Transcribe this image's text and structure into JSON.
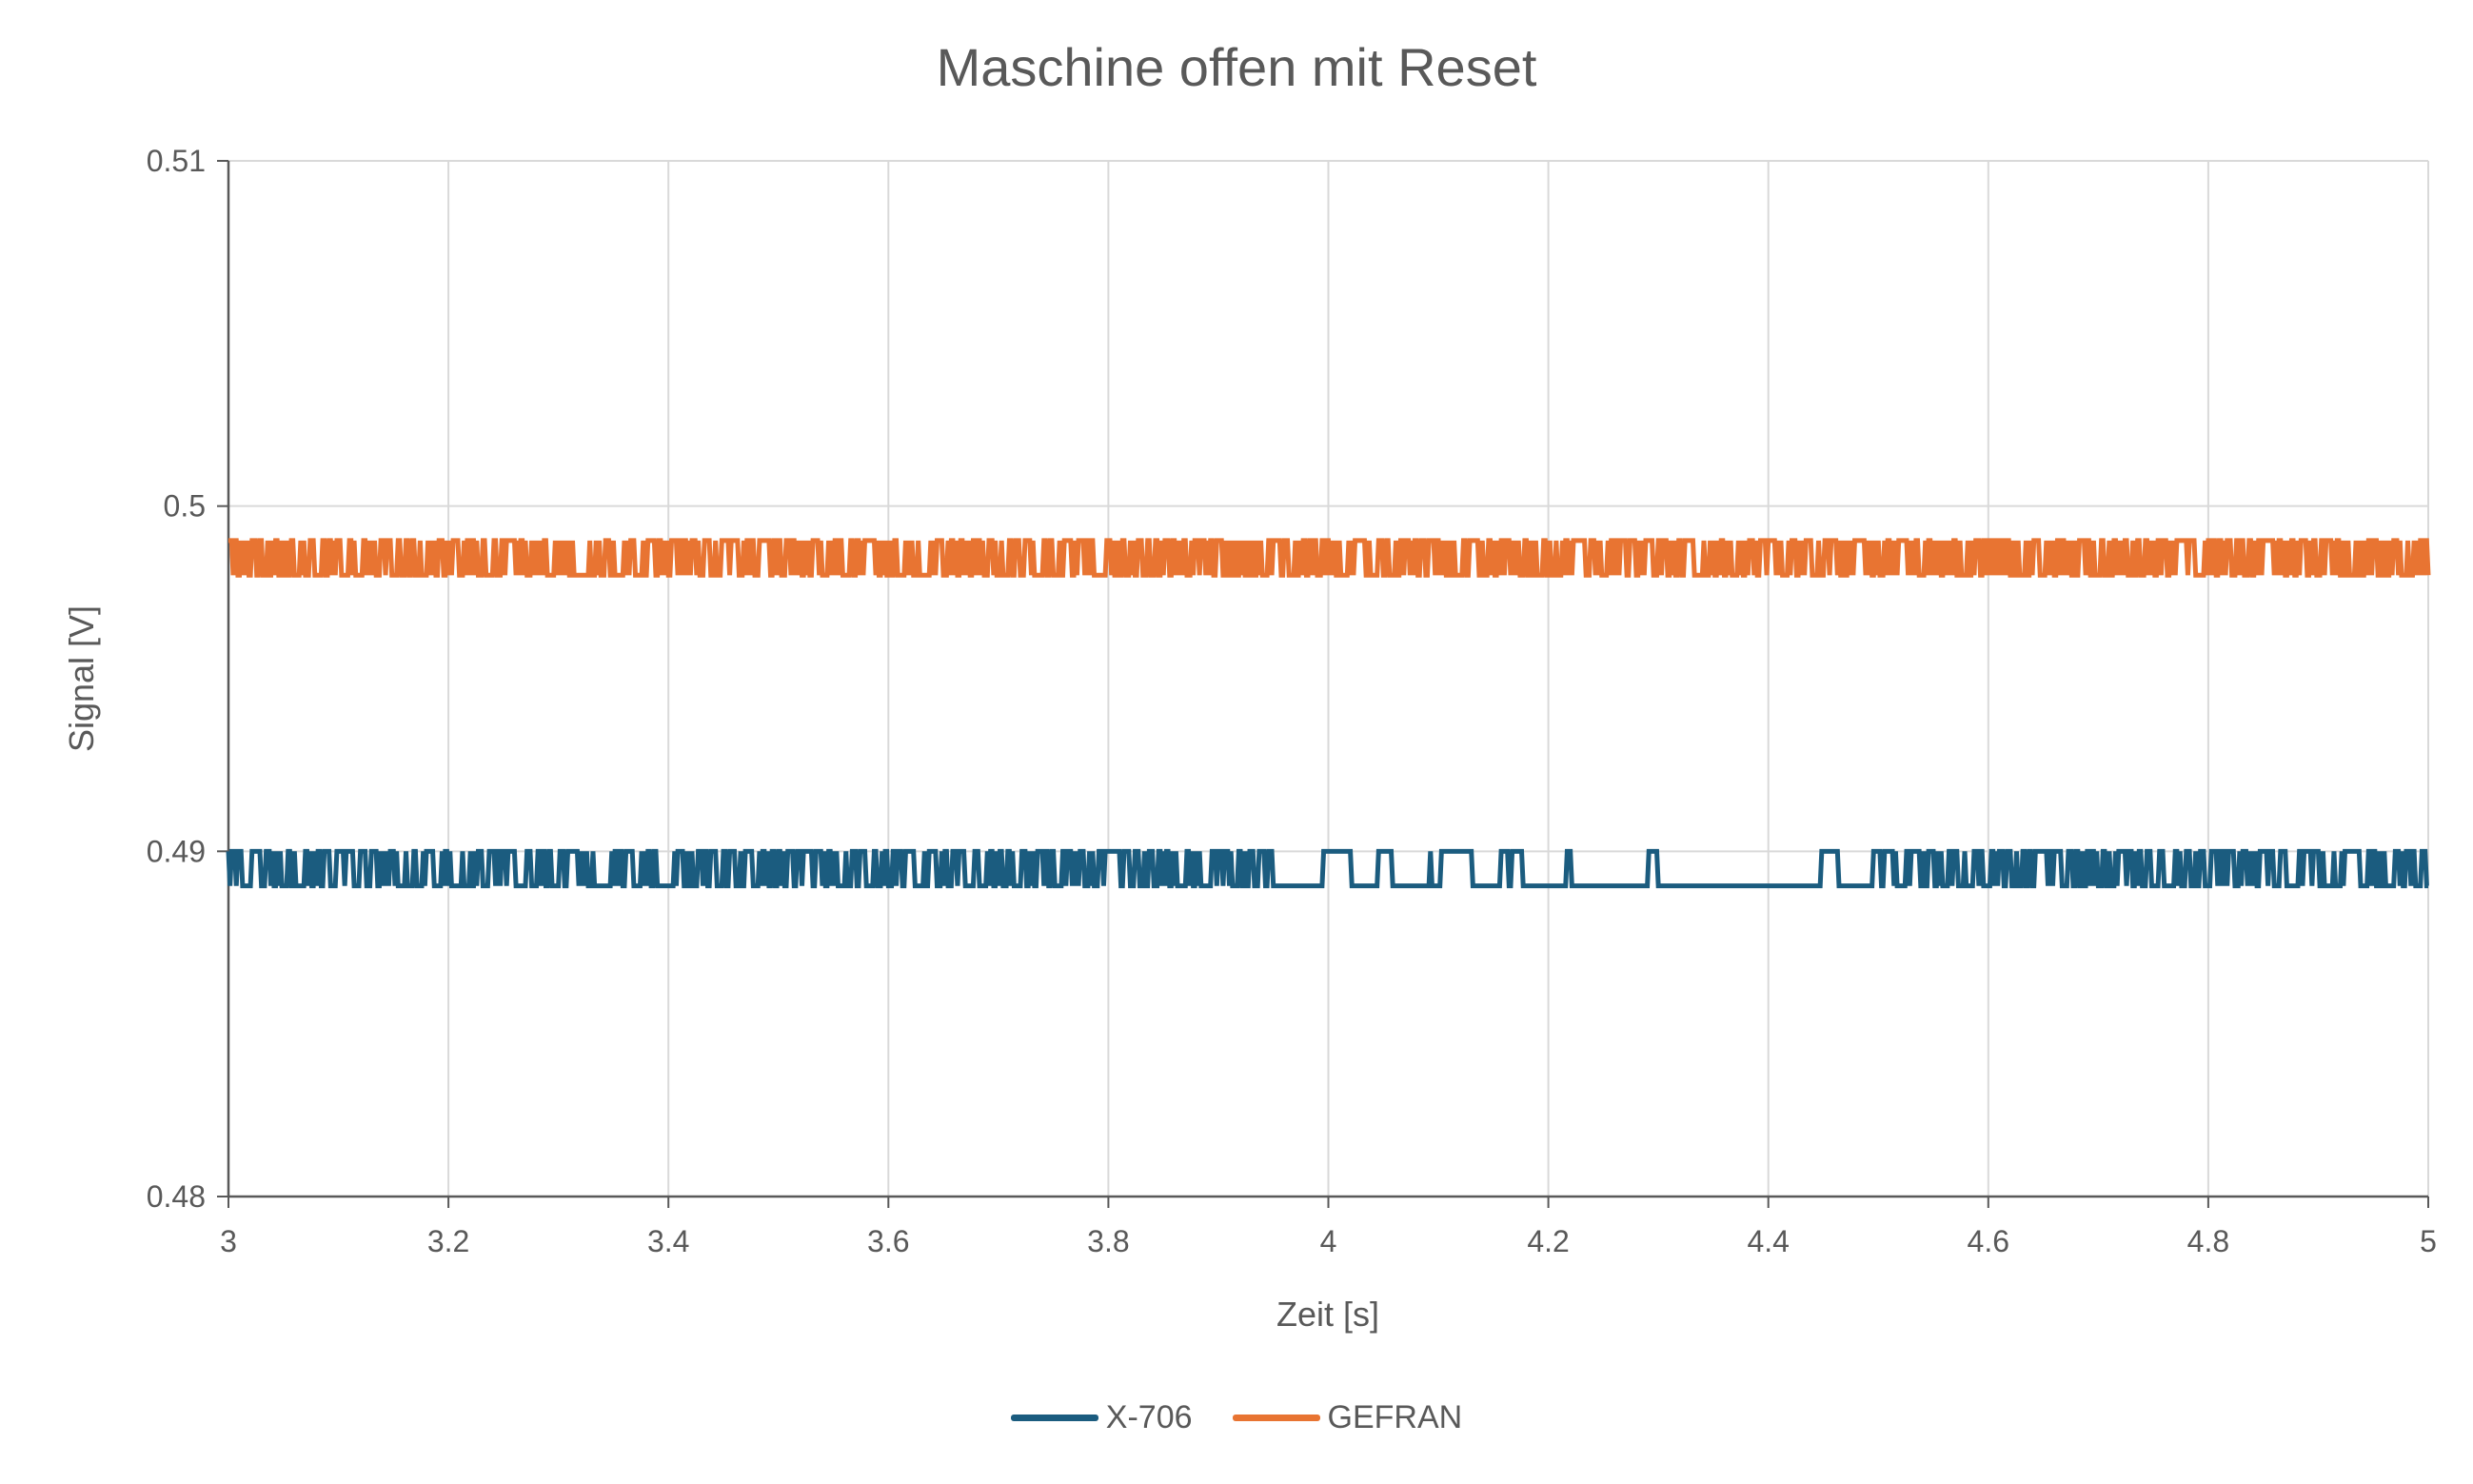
{
  "chart_data": {
    "type": "line",
    "title": "Maschine offen mit Reset",
    "xlabel": "Zeit [s]",
    "ylabel": "Signal [V]",
    "xlim": [
      3,
      5
    ],
    "ylim": [
      0.48,
      0.51
    ],
    "x_ticks": [
      "3",
      "3.2",
      "3.4",
      "3.6",
      "3.8",
      "4",
      "4.2",
      "4.4",
      "4.6",
      "4.8",
      "5"
    ],
    "y_ticks": [
      "0.48",
      "0.49",
      "0.5",
      "0.51"
    ],
    "grid": true,
    "legend_position": "bottom",
    "series": [
      {
        "name": "X-706",
        "color": "#1b5c7f",
        "levels": [
          0.489,
          0.49
        ],
        "x_range": [
          3,
          5
        ],
        "note_values": "signal toggles between the two levels (0.489 V and 0.49 V)"
      },
      {
        "name": "GEFRAN",
        "color": "#e87432",
        "levels": [
          0.498,
          0.499
        ],
        "x_range": [
          3,
          5
        ],
        "note_values": "signal toggles between the two levels (0.498 V and 0.499 V)"
      }
    ]
  }
}
